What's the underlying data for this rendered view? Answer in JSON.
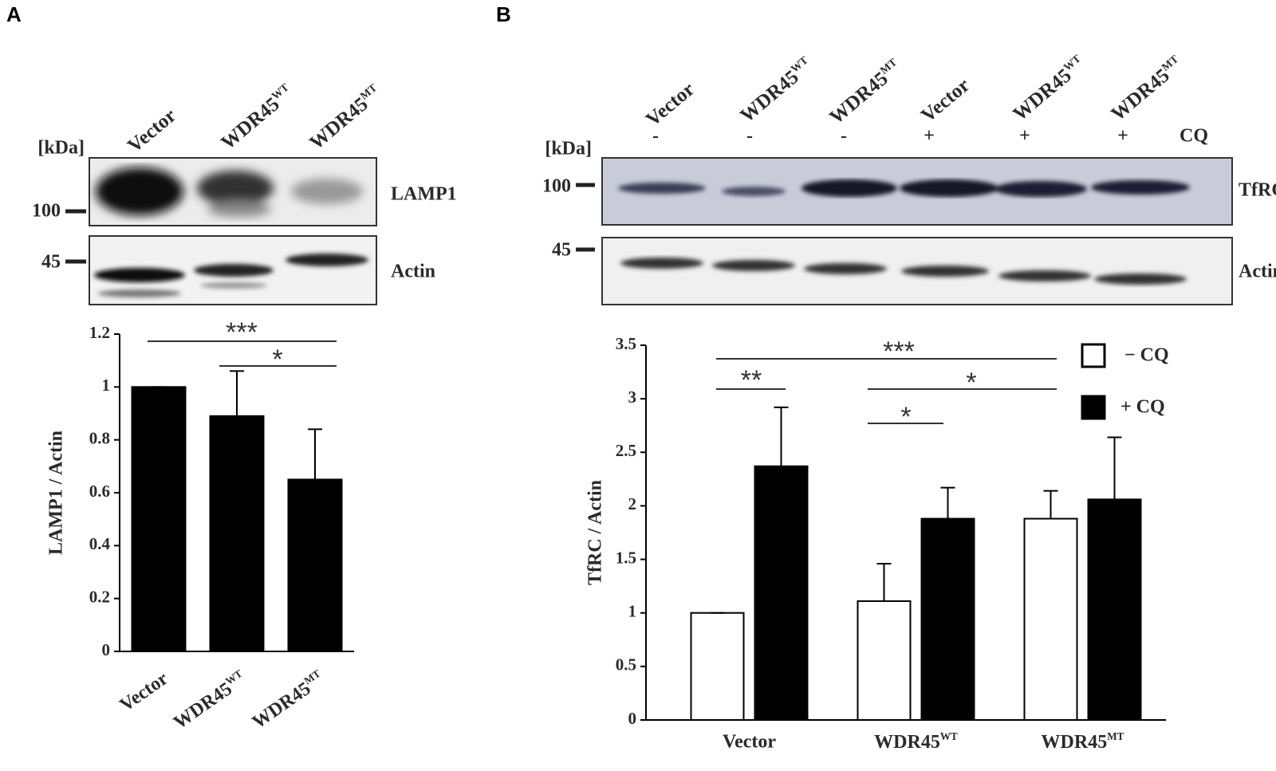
{
  "panel_labels": [
    "A",
    "B"
  ],
  "blots": [
    {
      "kda_label": "[kDa]",
      "lanes": [
        "Vector",
        "WDR45WT",
        "WDR45MT"
      ],
      "markers": [
        "100",
        "45"
      ],
      "bands": [
        "LAMP1",
        "Actin"
      ]
    },
    {
      "kda_label": "[kDa]",
      "lanes": [
        "Vector",
        "WDR45WT",
        "WDR45MT",
        "Vector",
        "WDR45WT",
        "WDR45MT"
      ],
      "treatment_label": "CQ",
      "treatment": [
        "-",
        "-",
        "-",
        "+",
        "+",
        "+"
      ],
      "markers": [
        "100",
        "45"
      ],
      "bands": [
        "TfRC",
        "Actin"
      ]
    }
  ],
  "chart_data": [
    {
      "type": "bar",
      "y_label": "LAMP1 / Actin",
      "categories": [
        "Vector",
        "WDR45WT",
        "WDR45MT"
      ],
      "values": [
        1,
        0.89,
        0.65
      ],
      "errors": [
        0,
        0.17,
        0.19
      ],
      "color": "#000000",
      "ylim": [
        0,
        1.2
      ],
      "yticks": [
        0,
        0.2,
        0.4,
        0.6,
        0.8,
        1,
        1.2
      ],
      "annotations": [
        "***",
        "*"
      ]
    },
    {
      "type": "grouped_bar",
      "y_label": "TfRC / Actin",
      "categories": [
        "Vector",
        "WDR45WT",
        "WDR45MT"
      ],
      "series": [
        {
          "name": "− CQ",
          "color": "#ffffff",
          "values": [
            1,
            1.11,
            1.88
          ],
          "errors": [
            0,
            0.35,
            0.26
          ]
        },
        {
          "name": "+ CQ",
          "color": "#000000",
          "values": [
            2.37,
            1.88,
            2.06
          ],
          "errors": [
            0.55,
            0.29,
            0.58
          ]
        }
      ],
      "ylim": [
        0,
        3.5
      ],
      "yticks": [
        0,
        0.5,
        1,
        1.5,
        2,
        2.5,
        3,
        3.5
      ],
      "annotations": [
        "***",
        "**",
        "*",
        "*"
      ]
    }
  ]
}
